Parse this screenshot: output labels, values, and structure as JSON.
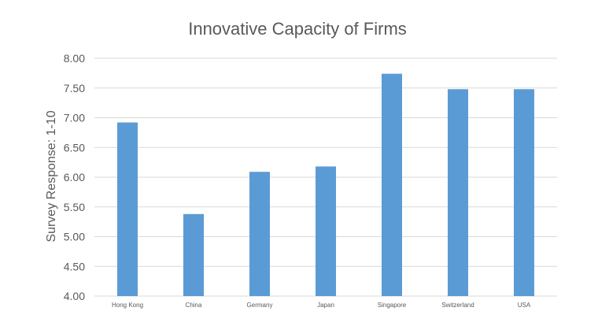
{
  "chart_data": {
    "type": "bar",
    "title": "Innovative Capacity of Firms",
    "xlabel": "",
    "ylabel": "Survey Response: 1-10",
    "categories": [
      "Hong Kong",
      "China",
      "Germany",
      "Japan",
      "Singapore",
      "Switzerland",
      "USA"
    ],
    "values": [
      6.92,
      5.38,
      6.09,
      6.18,
      7.74,
      7.48,
      7.48
    ],
    "ylim": [
      4.0,
      8.0
    ],
    "yticks": [
      "4.00",
      "4.50",
      "5.00",
      "5.50",
      "6.00",
      "6.50",
      "7.00",
      "7.50",
      "8.00"
    ],
    "grid": true,
    "legend": "none",
    "bar_color": "#5b9bd5"
  }
}
